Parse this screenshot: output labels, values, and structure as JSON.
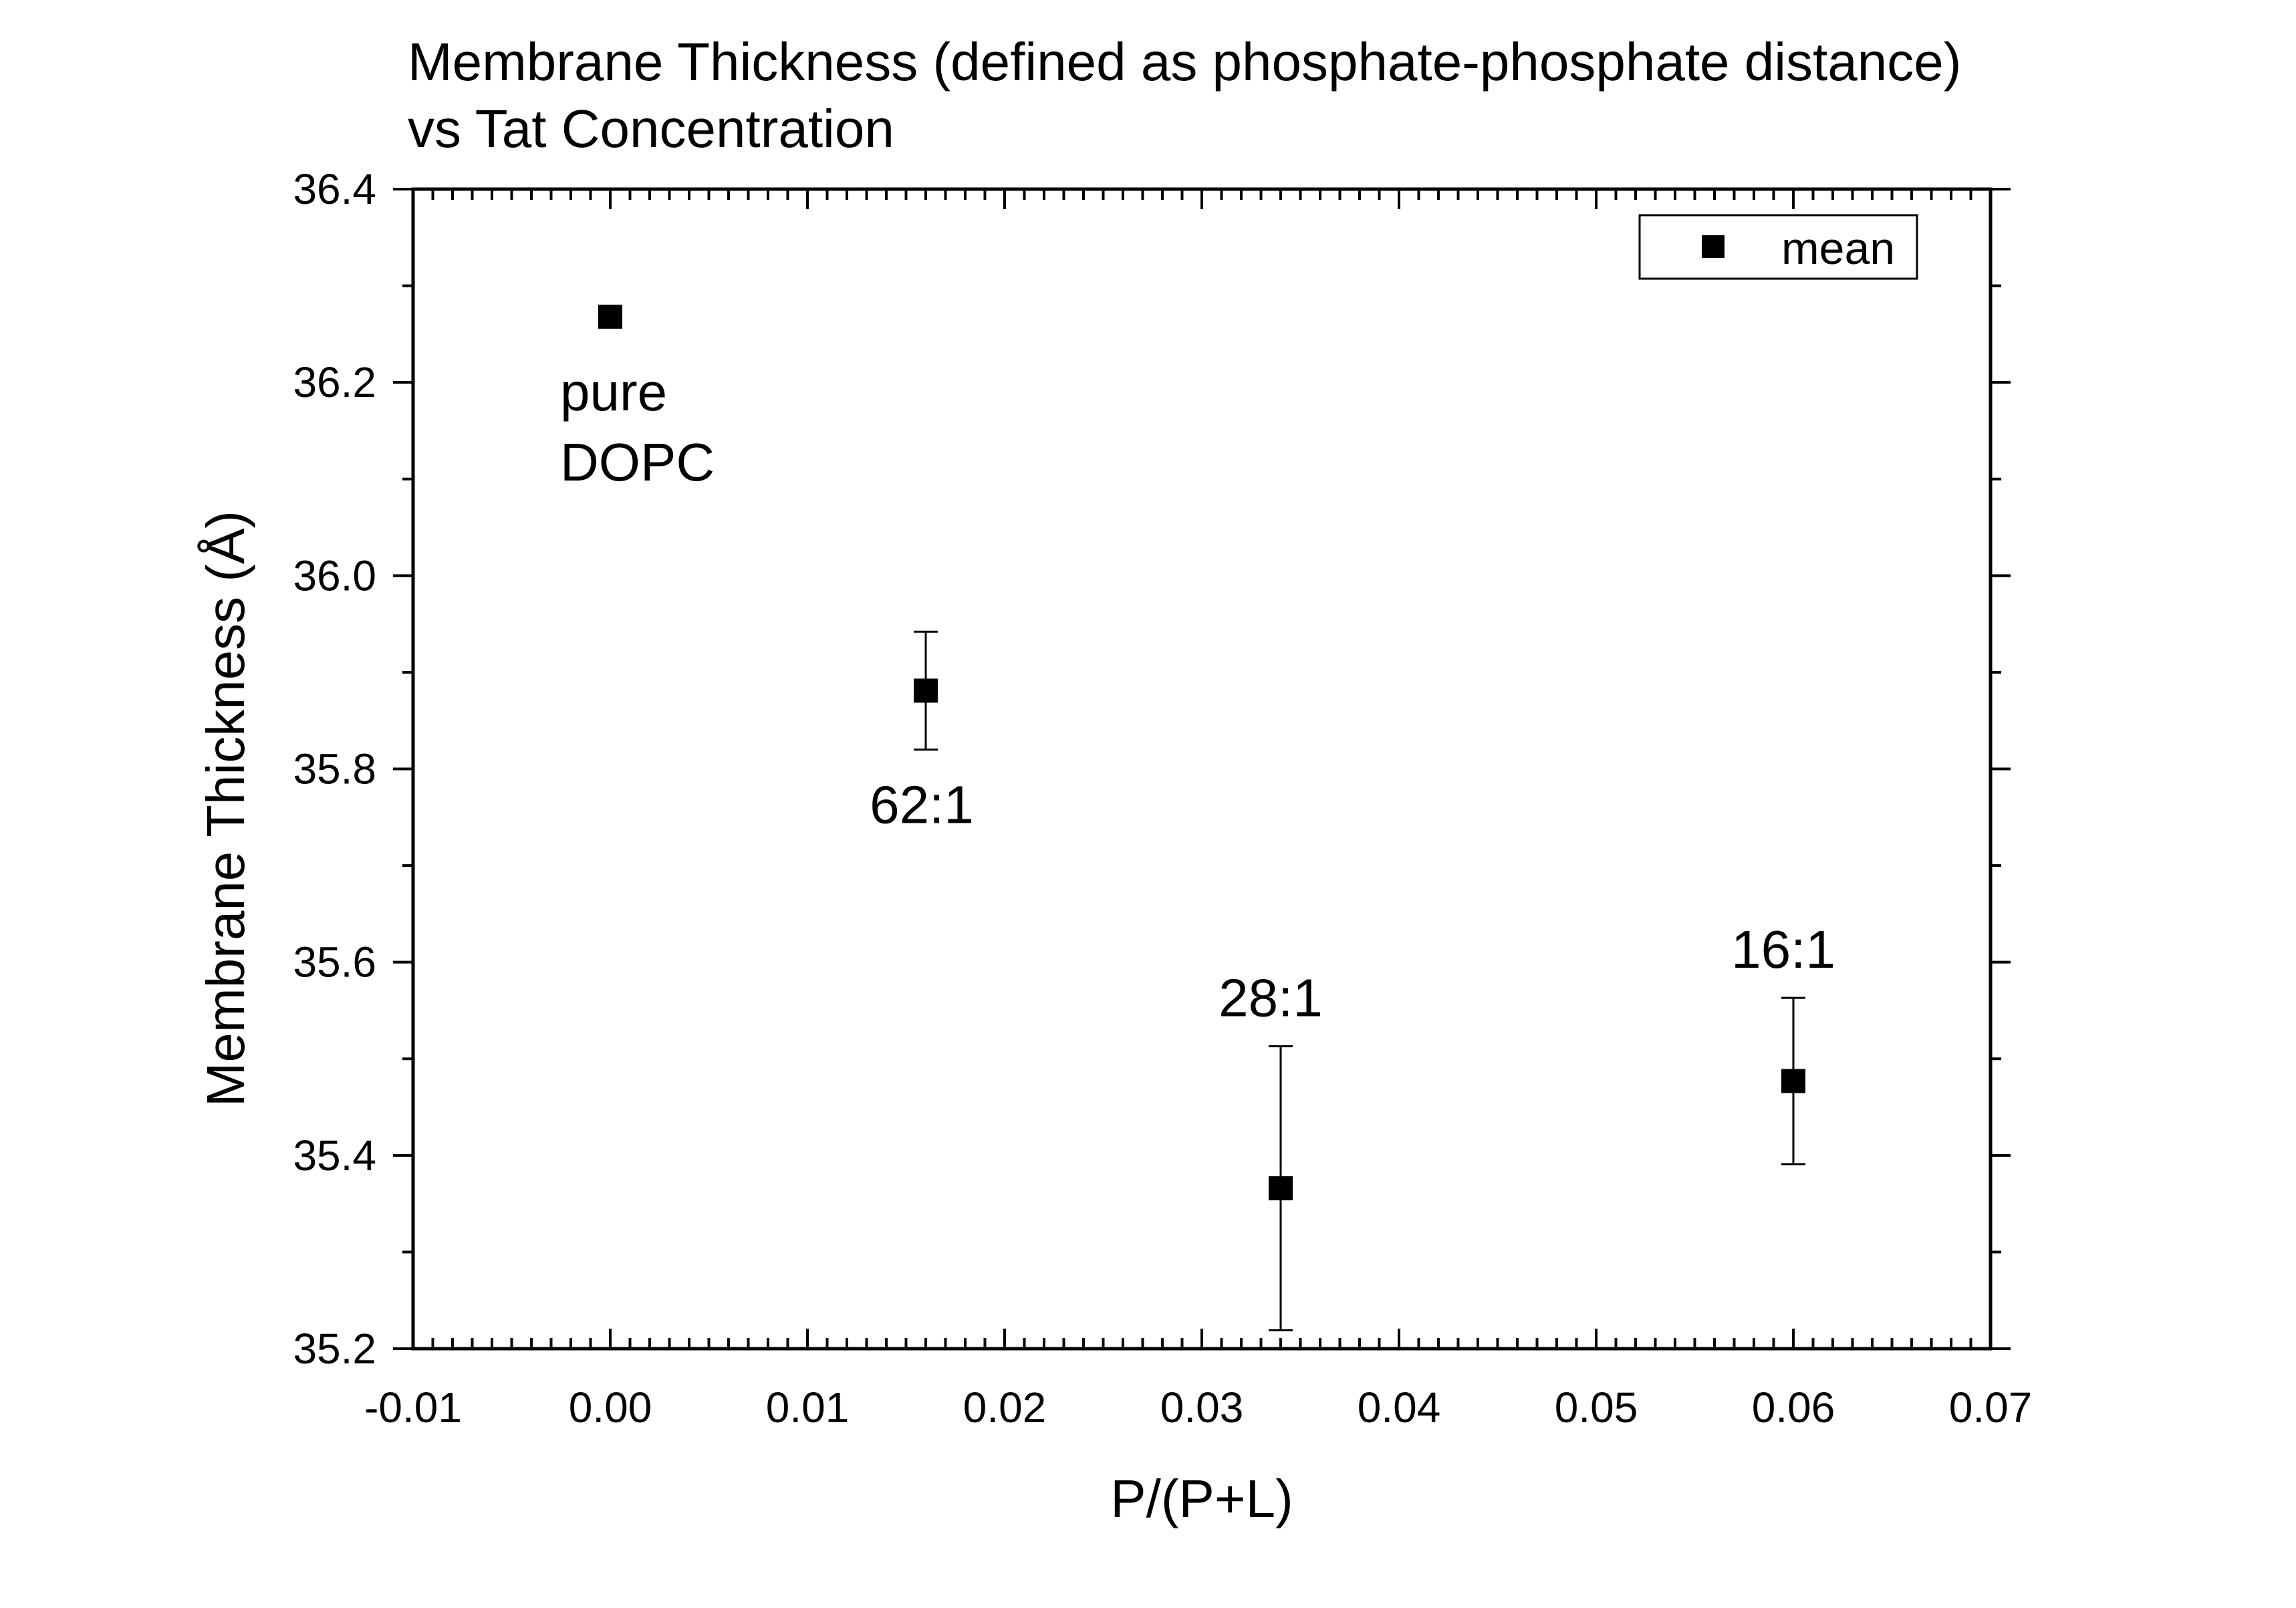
{
  "chart_data": {
    "type": "scatter",
    "title": "Membrane Thickness (defined as phosphate-phosphate distance)",
    "subtitle": "vs Tat Concentration",
    "xlabel": "P/(P+L)",
    "ylabel": "Membrane Thickness (Å)",
    "xlim": [
      -0.01,
      0.07
    ],
    "ylim": [
      35.2,
      36.4
    ],
    "x_ticks": [
      -0.01,
      0.0,
      0.01,
      0.02,
      0.03,
      0.04,
      0.05,
      0.06,
      0.07
    ],
    "x_tick_labels": [
      "-0.01",
      "0.00",
      "0.01",
      "0.02",
      "0.03",
      "0.04",
      "0.05",
      "0.06",
      "0.07"
    ],
    "y_ticks": [
      35.2,
      35.4,
      35.6,
      35.8,
      36.0,
      36.2,
      36.4
    ],
    "y_tick_labels": [
      "35.2",
      "35.4",
      "35.6",
      "35.8",
      "36.0",
      "36.2",
      "36.4"
    ],
    "grid": false,
    "legend": {
      "position": "top-right",
      "entries": [
        "mean"
      ]
    },
    "series": [
      {
        "name": "mean",
        "color": "#000000",
        "marker": "square",
        "points": [
          {
            "x": 0.0,
            "y": 36.268,
            "err": null,
            "label": [
              "pure",
              "DOPC"
            ],
            "label_pos": "below"
          },
          {
            "x": 0.016,
            "y": 35.881,
            "err": 0.061,
            "label": [
              "62:1"
            ],
            "label_pos": "below"
          },
          {
            "x": 0.034,
            "y": 35.366,
            "err": 0.147,
            "label": [
              "28:1"
            ],
            "label_pos": "above"
          },
          {
            "x": 0.06,
            "y": 35.477,
            "err": 0.086,
            "label": [
              "16:1"
            ],
            "label_pos": "above"
          }
        ]
      }
    ]
  }
}
